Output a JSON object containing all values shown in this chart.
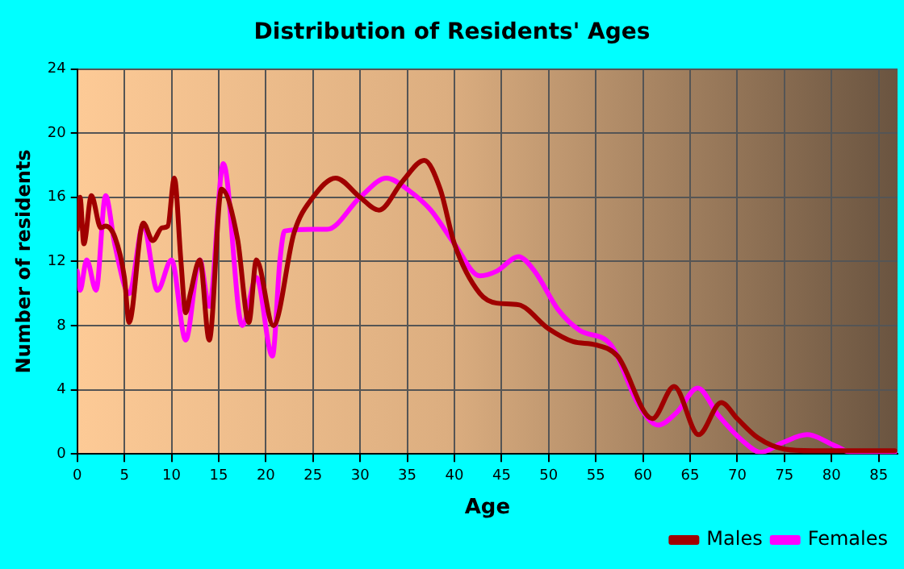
{
  "chart_data": {
    "type": "line",
    "title": "Distribution of Residents' Ages",
    "xlabel": "Age",
    "ylabel": "Number of residents",
    "xlim": [
      0,
      87
    ],
    "xticks": [
      0,
      5,
      10,
      15,
      20,
      25,
      30,
      35,
      40,
      45,
      50,
      55,
      60,
      65,
      70,
      75,
      80,
      85
    ],
    "ylim": [
      0,
      24
    ],
    "yticks": [
      0,
      4,
      8,
      12,
      16,
      20,
      24
    ],
    "grid": true,
    "legend": "bottom right",
    "marker": "none",
    "line_style": "solid",
    "series": [
      {
        "name": "Males",
        "color": "#a00000",
        "x": [
          0,
          0.3,
          0.7,
          1.5,
          2.5,
          3,
          4,
          5,
          5.5,
          7,
          8,
          9,
          9.6,
          10.3,
          11,
          11.5,
          12,
          13,
          14,
          15.3,
          17,
          18.2,
          19,
          20.8,
          23,
          25,
          27.4,
          30,
          32,
          34.5,
          36.8,
          38.5,
          40,
          42.7,
          44.5,
          46.8,
          50,
          52.6,
          55,
          57.3,
          61,
          63.3,
          65.9,
          68.3,
          70,
          72.2,
          75,
          78,
          86.7
        ],
        "values": [
          14,
          16,
          13.1,
          16.1,
          14.1,
          14.2,
          13.5,
          11,
          8.2,
          14.4,
          13.3,
          14.1,
          14.2,
          17.2,
          12,
          8.8,
          10,
          12.1,
          7.1,
          16.5,
          13.4,
          8.2,
          12.1,
          8,
          13.8,
          16,
          17.2,
          16,
          15.2,
          17,
          18.3,
          16.5,
          13.1,
          10,
          9.4,
          9.3,
          7.8,
          7,
          6.8,
          6.1,
          2.2,
          4.2,
          1.2,
          3.2,
          2.2,
          1,
          0.3,
          0.2,
          0.2
        ]
      },
      {
        "name": "Females",
        "color": "#ff00ff",
        "x": [
          0,
          0.3,
          1,
          2,
          3,
          4,
          5.5,
          7,
          8.5,
          10,
          11.5,
          13,
          14,
          15.5,
          17.5,
          19,
          20.7,
          21.5,
          22,
          25,
          26.5,
          30,
          32.8,
          35,
          37.5,
          40,
          42.7,
          44.5,
          46.8,
          48.5,
          51,
          53.3,
          56.6,
          59.5,
          61.6,
          63.6,
          65.8,
          68,
          70.5,
          72.5,
          74.8,
          77.4,
          80.4,
          82.1,
          86.7
        ],
        "values": [
          11.4,
          10.2,
          12.1,
          10.2,
          16.1,
          13,
          10,
          14.3,
          10.2,
          12.1,
          7.1,
          12.1,
          9.2,
          18.1,
          8,
          11,
          6.1,
          12.1,
          13.9,
          14,
          14,
          16,
          17.2,
          16.5,
          15.2,
          13.1,
          11.1,
          11.4,
          12.3,
          11.4,
          9,
          7.7,
          6.8,
          3.1,
          1.8,
          2.6,
          4.1,
          2.4,
          0.85,
          0.1,
          0.7,
          1.2,
          0.5,
          0.1,
          0.1
        ]
      }
    ]
  }
}
